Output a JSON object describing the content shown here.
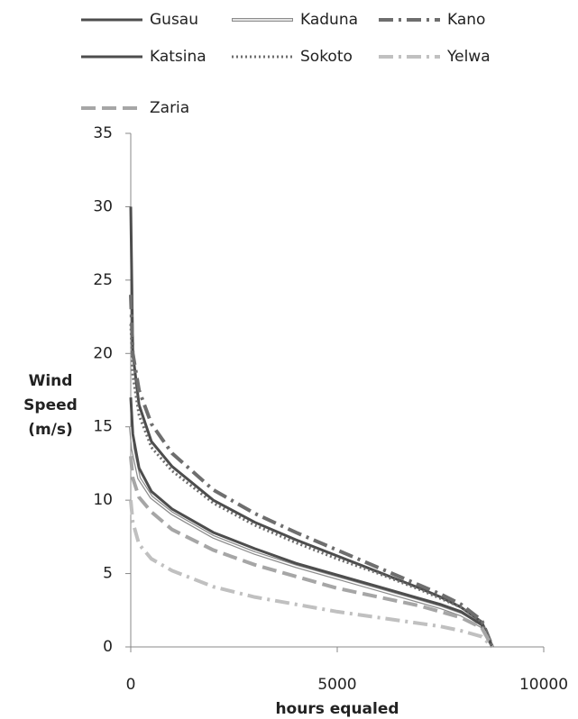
{
  "chart_data": {
    "type": "line",
    "ylabel": [
      "Wind",
      "Speed",
      "(m/s)"
    ],
    "xlabel": "hours equaled",
    "xlim": [
      0,
      10000
    ],
    "ylim": [
      0,
      35
    ],
    "xticks": [
      0,
      5000,
      10000
    ],
    "yticks": [
      0,
      5,
      10,
      15,
      20,
      25,
      30,
      35
    ],
    "grid": false,
    "x": [
      0,
      50,
      200,
      500,
      1000,
      2000,
      3000,
      4000,
      5000,
      6000,
      7000,
      7500,
      8000,
      8500,
      8760
    ],
    "series": [
      {
        "name": "Gusau",
        "color": "#4d4d4d",
        "style": "solid",
        "values": [
          30,
          20,
          16.5,
          14,
          12.3,
          10,
          8.5,
          7.3,
          6.2,
          5.1,
          4.0,
          3.4,
          2.7,
          1.7,
          0
        ]
      },
      {
        "name": "Kaduna",
        "color": "#8c8c8c",
        "style": "double",
        "values": [
          15,
          13.5,
          11.5,
          10.2,
          9.1,
          7.5,
          6.4,
          5.5,
          4.7,
          3.9,
          3.1,
          2.7,
          2.2,
          1.4,
          0
        ]
      },
      {
        "name": "Kano",
        "color": "#6e6e6e",
        "style": "dashdot",
        "values": [
          24,
          20,
          17.5,
          15.2,
          13.2,
          10.7,
          9.1,
          7.8,
          6.6,
          5.4,
          4.2,
          3.6,
          2.9,
          1.8,
          0
        ]
      },
      {
        "name": "Katsina",
        "color": "#4d4d4d",
        "style": "solid",
        "values": [
          17,
          14.5,
          12.2,
          10.6,
          9.4,
          7.8,
          6.7,
          5.7,
          4.9,
          4.1,
          3.3,
          2.9,
          2.4,
          1.5,
          0
        ]
      },
      {
        "name": "Sokoto",
        "color": "#6e6e6e",
        "style": "dotted",
        "values": [
          22,
          18.5,
          15.8,
          13.6,
          12.0,
          9.8,
          8.3,
          7.1,
          6.0,
          5.0,
          3.9,
          3.3,
          2.7,
          1.7,
          0
        ]
      },
      {
        "name": "Yelwa",
        "color": "#c0c0c0",
        "style": "dashdot",
        "values": [
          10,
          8.5,
          7.0,
          6.0,
          5.2,
          4.1,
          3.4,
          2.9,
          2.4,
          2.0,
          1.6,
          1.4,
          1.1,
          0.7,
          0
        ]
      },
      {
        "name": "Zaria",
        "color": "#a6a6a6",
        "style": "dashed",
        "values": [
          13,
          11.5,
          10.2,
          9.2,
          8.0,
          6.6,
          5.6,
          4.8,
          4.0,
          3.4,
          2.8,
          2.4,
          2.0,
          1.3,
          0
        ]
      }
    ]
  }
}
